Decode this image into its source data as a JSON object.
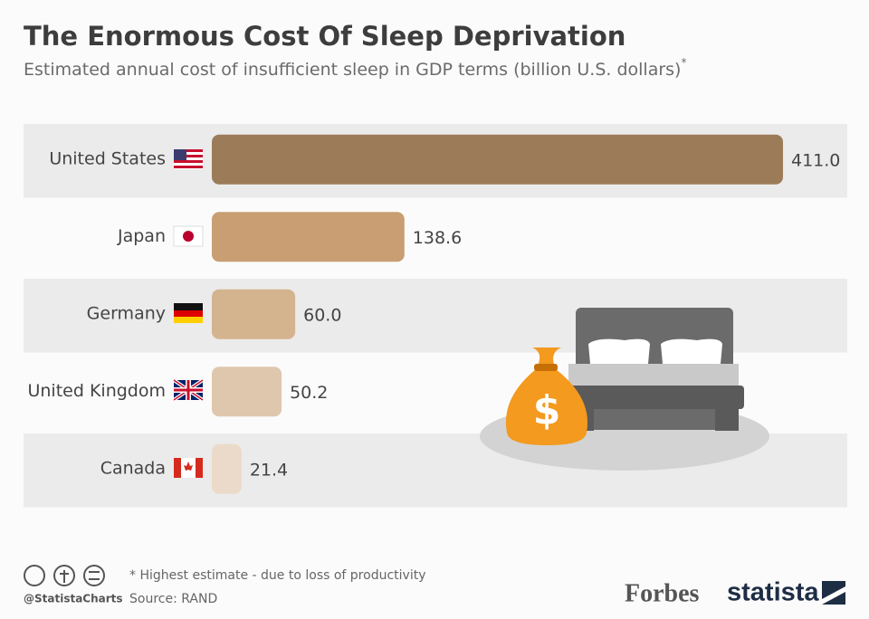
{
  "chart_data": {
    "type": "bar",
    "title": "The Enormous Cost Of Sleep Deprivation",
    "subtitle": "Estimated annual cost of insufficient sleep in GDP terms (billion U.S. dollars)",
    "subtitle_mark": "*",
    "categories": [
      "United States",
      "Japan",
      "Germany",
      "United Kingdom",
      "Canada"
    ],
    "values": [
      411,
      138.6,
      60,
      50.2,
      21.4
    ],
    "value_labels": [
      "411.0",
      "138.6",
      "60.0",
      "50.2",
      "21.4"
    ],
    "colors": [
      "#9c7b58",
      "#c89e72",
      "#d4b38f",
      "#dfc7ad",
      "#ebdac9"
    ]
  },
  "footer": {
    "handle": "@StatistaCharts",
    "note": "* Highest estimate - due to loss of productivity",
    "source": "Source: RAND",
    "brand_1": "Forbes",
    "brand_2": "statista"
  }
}
